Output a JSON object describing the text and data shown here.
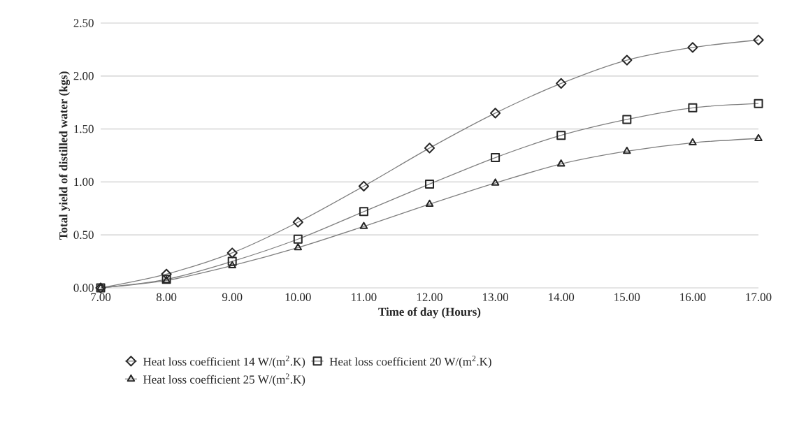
{
  "chart_data": {
    "type": "line",
    "xlabel": "Time of day (Hours)",
    "ylabel": "Total yield of distilled water (kgs)",
    "x": [
      7,
      8,
      9,
      10,
      11,
      12,
      13,
      14,
      15,
      16,
      17
    ],
    "series": [
      {
        "name": "Heat loss coefficient 14 W/(m$^{2}$.K)",
        "color": "#7f7f7f",
        "marker": "diamond",
        "values": [
          0,
          0.13,
          0.33,
          0.62,
          0.96,
          1.32,
          1.65,
          1.93,
          2.15,
          2.27,
          2.34
        ]
      },
      {
        "name": "Heat loss coefficient 20 W/(m$^{2}$.K)",
        "color": "#7f7f7f",
        "marker": "square",
        "values": [
          0,
          0.08,
          0.25,
          0.46,
          0.72,
          0.98,
          1.23,
          1.44,
          1.59,
          1.7,
          1.74
        ]
      },
      {
        "name": "Heat loss coefficient 25 W/(m$^{2}$.K)",
        "color": "#7f7f7f",
        "marker": "triangle",
        "values": [
          0,
          0.07,
          0.21,
          0.38,
          0.58,
          0.79,
          0.99,
          1.17,
          1.29,
          1.37,
          1.41
        ]
      }
    ],
    "xlim": [
      7,
      17
    ],
    "xticks": [
      {
        "value": 7,
        "label": "7.00"
      },
      {
        "value": 8,
        "label": "8.00"
      },
      {
        "value": 9,
        "label": "9.00"
      },
      {
        "value": 10,
        "label": "10.00"
      },
      {
        "value": 11,
        "label": "11.00"
      },
      {
        "value": 12,
        "label": "12.00"
      },
      {
        "value": 13,
        "label": "13.00"
      },
      {
        "value": 14,
        "label": "14.00"
      },
      {
        "value": 15,
        "label": "15.00"
      },
      {
        "value": 16,
        "label": "16.00"
      },
      {
        "value": 17,
        "label": "17.00"
      }
    ],
    "ylim": [
      0,
      2.5
    ],
    "yticks": [
      {
        "value": 0,
        "label": "0.00"
      },
      {
        "value": 0.5,
        "label": "0.50"
      },
      {
        "value": 1,
        "label": "1.00"
      },
      {
        "value": 1.5,
        "label": "1.50"
      },
      {
        "value": 2,
        "label": "2.00"
      },
      {
        "value": 2.5,
        "label": "2.50"
      }
    ],
    "grid": "y",
    "legend": "bottom",
    "line_style": "solid"
  }
}
